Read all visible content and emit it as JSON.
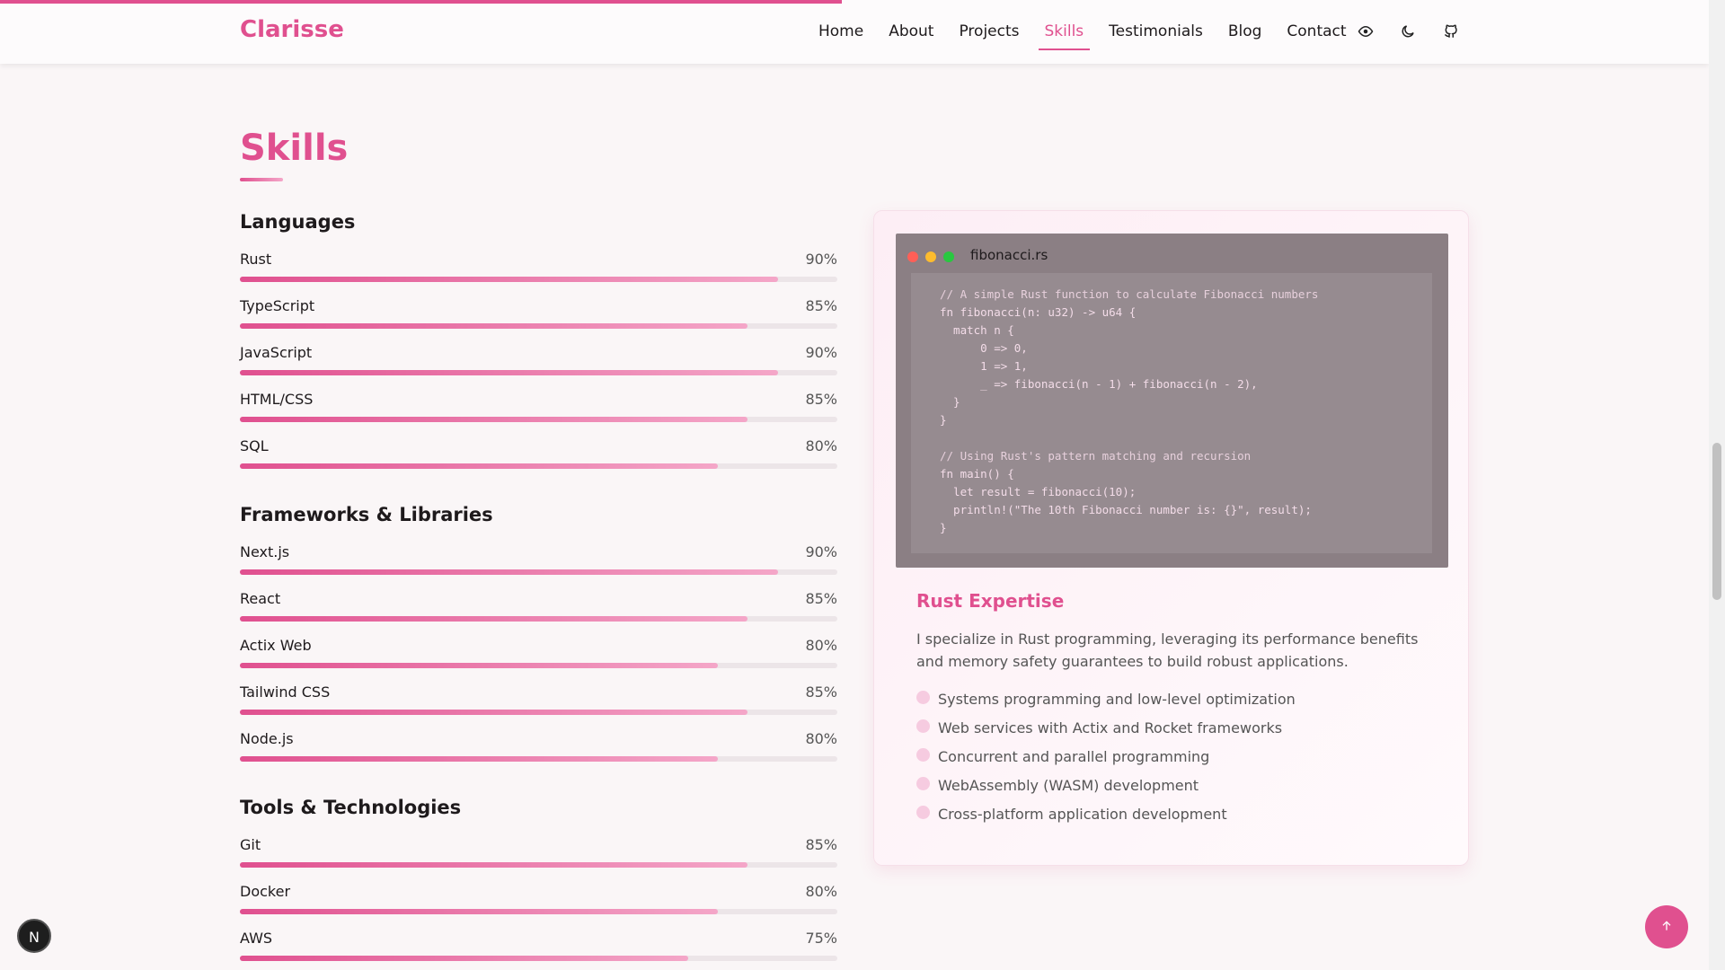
{
  "nav": {
    "brand": "Clarisse",
    "links": [
      "Home",
      "About",
      "Projects",
      "Skills",
      "Testimonials",
      "Blog",
      "Contact"
    ],
    "active": 3
  },
  "skills": {
    "title": "Skills",
    "groups": [
      {
        "name": "Languages",
        "items": [
          {
            "name": "Rust",
            "value": 90,
            "label": "90%"
          },
          {
            "name": "TypeScript",
            "value": 85,
            "label": "85%"
          },
          {
            "name": "JavaScript",
            "value": 90,
            "label": "90%"
          },
          {
            "name": "HTML/CSS",
            "value": 85,
            "label": "85%"
          },
          {
            "name": "SQL",
            "value": 80,
            "label": "80%"
          }
        ]
      },
      {
        "name": "Frameworks & Libraries",
        "items": [
          {
            "name": "Next.js",
            "value": 90,
            "label": "90%"
          },
          {
            "name": "React",
            "value": 85,
            "label": "85%"
          },
          {
            "name": "Actix Web",
            "value": 80,
            "label": "80%"
          },
          {
            "name": "Tailwind CSS",
            "value": 85,
            "label": "85%"
          },
          {
            "name": "Node.js",
            "value": 80,
            "label": "80%"
          }
        ]
      },
      {
        "name": "Tools & Technologies",
        "items": [
          {
            "name": "Git",
            "value": 85,
            "label": "85%"
          },
          {
            "name": "Docker",
            "value": 80,
            "label": "80%"
          },
          {
            "name": "AWS",
            "value": 75,
            "label": "75%"
          }
        ]
      }
    ]
  },
  "code": {
    "filename": "fibonacci.rs",
    "lines": [
      "// A simple Rust function to calculate Fibonacci numbers",
      "fn fibonacci(n: u32) -> u64 {",
      "  match n {",
      "      0 => 0,",
      "      1 => 1,",
      "      _ => fibonacci(n - 1) + fibonacci(n - 2),",
      "  }",
      "}",
      "",
      "// Using Rust's pattern matching and recursion",
      "fn main() {",
      "  let result = fibonacci(10);",
      "  println!(\"The 10th Fibonacci number is: {}\", result);",
      "}"
    ]
  },
  "expertise": {
    "title": "Rust Expertise",
    "text": "I specialize in Rust programming, leveraging its performance benefits and memory safety guarantees to build robust applications.",
    "points": [
      "Systems programming and low-level optimization",
      "Web services with Actix and Rocket frameworks",
      "Concurrent and parallel programming",
      "WebAssembly (WASM) development",
      "Cross-platform application development"
    ]
  },
  "badge": "N"
}
